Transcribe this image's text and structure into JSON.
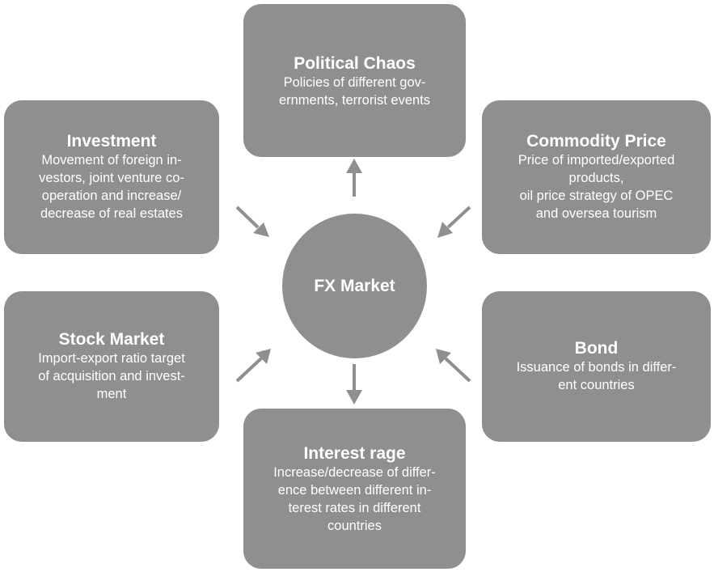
{
  "center": {
    "label": "FX Market"
  },
  "boxes": {
    "political": {
      "title": "Political Chaos",
      "desc": "Policies of different gov-\nernments, terrorist events"
    },
    "investment": {
      "title": "Investment",
      "desc": "Movement of foreign in-\nvestors, joint venture co-\noperation and increase/\ndecrease of real estates"
    },
    "commodity": {
      "title": "Commodity Price",
      "desc": "Price of imported/exported\nproducts,\noil price strategy of OPEC\nand oversea tourism"
    },
    "stock": {
      "title": "Stock Market",
      "desc": "Import-export ratio target\nof acquisition and invest-\nment"
    },
    "bond": {
      "title": "Bond",
      "desc": "Issuance of bonds in differ-\nent countries"
    },
    "interest": {
      "title": "Interest rage",
      "desc": "Increase/decrease of differ-\nence between different in-\nterest rates in different\ncountries"
    }
  },
  "colors": {
    "box_fill": "#8f8f8f",
    "arrow": "#8f8f8f",
    "text": "#ffffff"
  }
}
